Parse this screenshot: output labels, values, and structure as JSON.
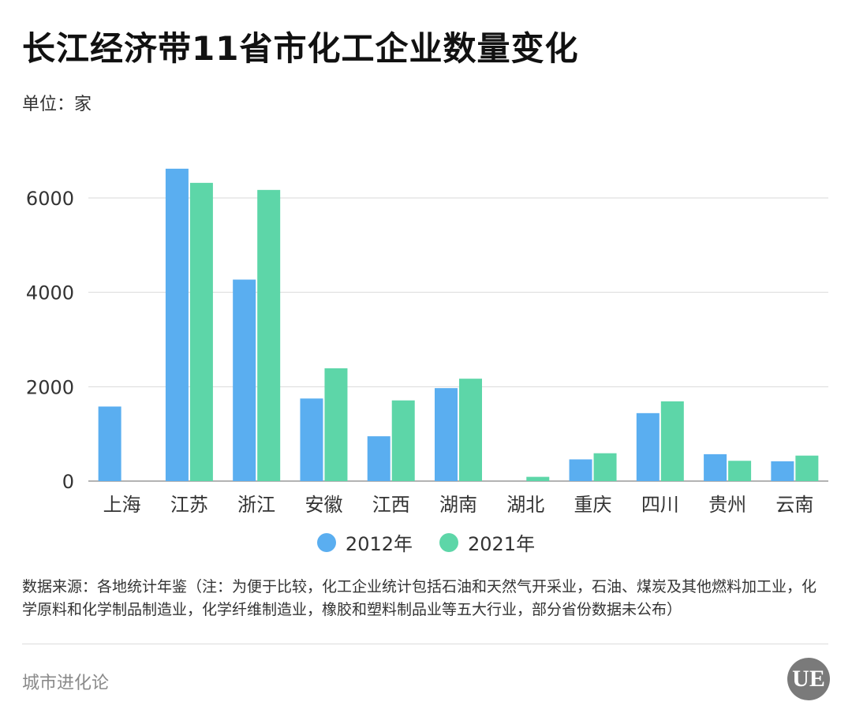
{
  "header": {
    "title": "长江经济带11省市化工企业数量变化",
    "unit": "单位：家"
  },
  "chart_data": {
    "type": "bar",
    "categories": [
      "上海",
      "江苏",
      "浙江",
      "安徽",
      "江西",
      "湖南",
      "湖北",
      "重庆",
      "四川",
      "贵州",
      "云南"
    ],
    "series": [
      {
        "name": "2012年",
        "values": [
          1580,
          6620,
          4270,
          1750,
          950,
          1970,
          0,
          460,
          1440,
          570,
          420
        ],
        "color": "#5aaef0"
      },
      {
        "name": "2021年",
        "values": [
          0,
          6320,
          6170,
          2390,
          1710,
          2170,
          90,
          590,
          1690,
          430,
          540
        ],
        "color": "#5dd6a8"
      }
    ],
    "yticks": [
      0,
      2000,
      4000,
      6000
    ],
    "ylim": [
      0,
      7000
    ],
    "grid": true,
    "legend": "bottom"
  },
  "footer": {
    "source": "数据来源：各地统计年鉴（注：为便于比较，化工企业统计包括石油和天然气开采业，石油、煤炭及其他燃料加工业，化学原料和化学制品制造业，化学纤维制造业，橡胶和塑料制品业等五大行业，部分省份数据未公布）",
    "brand": "城市进化论",
    "logo_text": "UE"
  }
}
